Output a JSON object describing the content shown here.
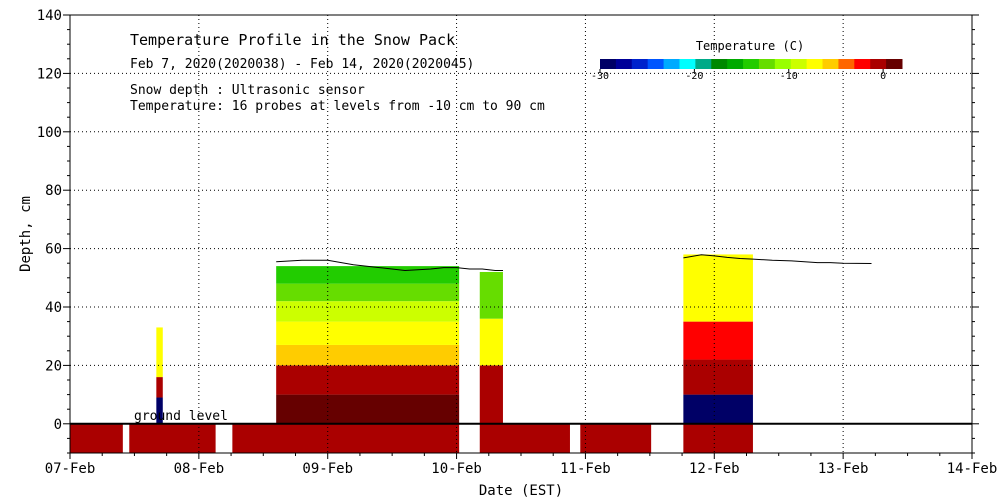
{
  "chart_data": {
    "type": "heatmap",
    "title": "Temperature Profile in the Snow Pack",
    "subtitle": "Feb  7, 2020(2020038) - Feb 14, 2020(2020045)",
    "notes": [
      "Snow depth : Ultrasonic sensor",
      "Temperature: 16 probes at levels from -10 cm to 90 cm"
    ],
    "xlabel": "Date (EST)",
    "ylabel": "Depth, cm",
    "ground_label": "ground level",
    "x_start": "2020-02-07",
    "x_end": "2020-02-14",
    "xlim": [
      0,
      7
    ],
    "ylim": [
      -10,
      140
    ],
    "x_ticks": [
      "07-Feb",
      "08-Feb",
      "09-Feb",
      "10-Feb",
      "11-Feb",
      "12-Feb",
      "13-Feb",
      "14-Feb"
    ],
    "y_ticks": [
      0,
      20,
      40,
      60,
      80,
      100,
      120,
      140
    ],
    "grid": "dotted",
    "colorbar": {
      "title": "Temperature (C)",
      "min": -30,
      "max": 2,
      "tick_values": [
        -30,
        -20,
        -10,
        0
      ],
      "tick_labels": [
        "-30",
        "-20",
        "-10",
        "0"
      ],
      "colors": [
        "#000066",
        "#000099",
        "#0022cc",
        "#0055ff",
        "#00aaff",
        "#00ffff",
        "#00aa88",
        "#008800",
        "#00aa00",
        "#22cc00",
        "#66dd00",
        "#99ff00",
        "#ccff00",
        "#ffff00",
        "#ffcc00",
        "#ff6600",
        "#ff0000",
        "#aa0000",
        "#660000"
      ],
      "placement": "top-right"
    },
    "snow_depth": [
      [
        4.76,
        56.8
      ],
      [
        4.9,
        57.9
      ],
      [
        5.0,
        57.5
      ],
      [
        5.1,
        57.0
      ],
      [
        5.2,
        56.6
      ],
      [
        5.3,
        56.4
      ],
      [
        5.45,
        56.0
      ],
      [
        5.6,
        55.8
      ],
      [
        5.7,
        55.5
      ],
      [
        5.8,
        55.2
      ],
      [
        5.9,
        55.2
      ],
      [
        6.0,
        55.0
      ],
      [
        6.22,
        54.9
      ]
    ],
    "depth_curve_feb8": [
      [
        1.6,
        55.5
      ],
      [
        1.8,
        56.0
      ],
      [
        2.0,
        56.0
      ],
      [
        2.2,
        54.5
      ],
      [
        2.4,
        53.5
      ],
      [
        2.6,
        52.5
      ],
      [
        2.8,
        53.0
      ],
      [
        2.9,
        53.5
      ],
      [
        3.0,
        53.5
      ],
      [
        3.1,
        53.0
      ],
      [
        3.2,
        53.0
      ],
      [
        3.3,
        52.5
      ],
      [
        3.36,
        52.5
      ]
    ],
    "temperature_layers": [
      {
        "x": [
          0.0,
          0.41
        ],
        "y": [
          -10,
          0
        ],
        "temp": -0.8
      },
      {
        "x": [
          0.46,
          1.13
        ],
        "y": [
          -10,
          0
        ],
        "temp": -0.8
      },
      {
        "x": [
          1.26,
          3.02
        ],
        "y": [
          -10,
          0
        ],
        "temp": -0.8
      },
      {
        "x": [
          3.18,
          3.88
        ],
        "y": [
          -10,
          0
        ],
        "temp": -0.8
      },
      {
        "x": [
          3.96,
          4.51
        ],
        "y": [
          -10,
          0
        ],
        "temp": -0.8
      },
      {
        "x": [
          4.76,
          5.3
        ],
        "y": [
          -10,
          0
        ],
        "temp": -0.5
      },
      {
        "x": [
          0.67,
          0.72
        ],
        "y": [
          0,
          9
        ],
        "temp": -30
      },
      {
        "x": [
          0.67,
          0.72
        ],
        "y": [
          9,
          16
        ],
        "temp": -1
      },
      {
        "x": [
          0.67,
          0.72
        ],
        "y": [
          16,
          33
        ],
        "temp": -7
      },
      {
        "x": [
          1.6,
          3.02
        ],
        "y": [
          0,
          10
        ],
        "temp": 1.5
      },
      {
        "x": [
          1.6,
          3.02
        ],
        "y": [
          10,
          20
        ],
        "temp": -1
      },
      {
        "x": [
          1.6,
          3.02
        ],
        "y": [
          20,
          27
        ],
        "temp": -5
      },
      {
        "x": [
          1.6,
          3.02
        ],
        "y": [
          27,
          35
        ],
        "temp": -7
      },
      {
        "x": [
          1.6,
          3.02
        ],
        "y": [
          35,
          42
        ],
        "temp": -9
      },
      {
        "x": [
          1.6,
          3.02
        ],
        "y": [
          42,
          48
        ],
        "temp": -12
      },
      {
        "x": [
          1.6,
          3.02
        ],
        "y": [
          48,
          54
        ],
        "temp": -14
      },
      {
        "x": [
          3.18,
          3.36
        ],
        "y": [
          0,
          20
        ],
        "temp": -1
      },
      {
        "x": [
          3.18,
          3.36
        ],
        "y": [
          20,
          36
        ],
        "temp": -7
      },
      {
        "x": [
          3.18,
          3.36
        ],
        "y": [
          36,
          52
        ],
        "temp": -12
      },
      {
        "x": [
          4.76,
          5.3
        ],
        "y": [
          0,
          10
        ],
        "temp": -30
      },
      {
        "x": [
          4.76,
          5.3
        ],
        "y": [
          10,
          22
        ],
        "temp": -1
      },
      {
        "x": [
          4.76,
          5.3
        ],
        "y": [
          22,
          35
        ],
        "temp": -3
      },
      {
        "x": [
          4.76,
          5.3
        ],
        "y": [
          35,
          58
        ],
        "temp": -7
      }
    ]
  }
}
